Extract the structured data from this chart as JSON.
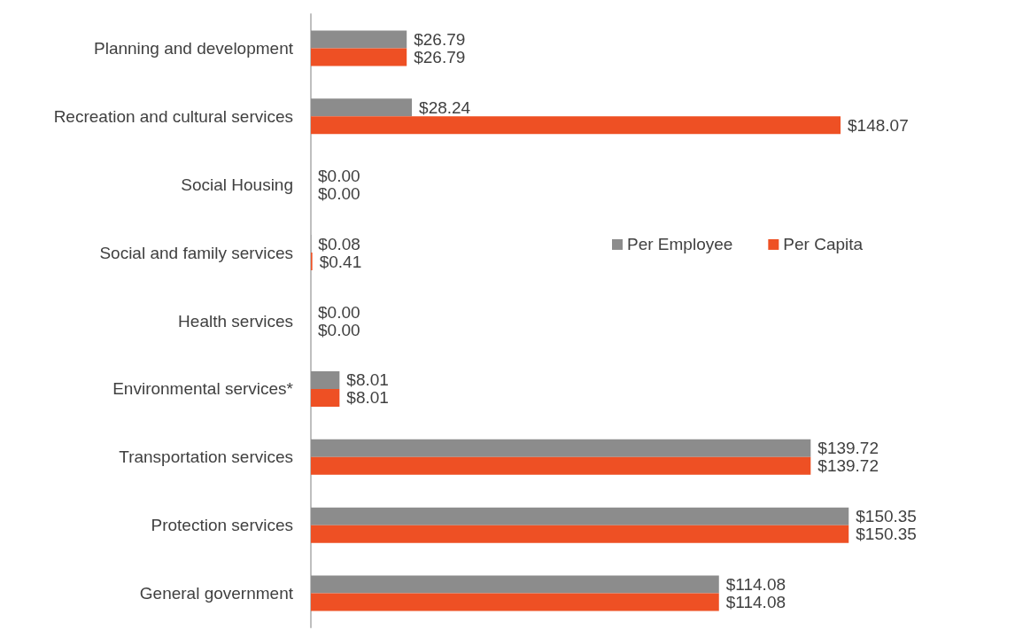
{
  "chart_data": {
    "type": "bar",
    "orientation": "horizontal",
    "categories": [
      "Planning and development",
      "Recreation and cultural services",
      "Social Housing",
      "Social and family services",
      "Health services",
      "Environmental services*",
      "Transportation services",
      "Protection services",
      "General government"
    ],
    "series": [
      {
        "name": "Per Employee",
        "color": "#8c8c8c",
        "values": [
          26.79,
          28.24,
          0,
          0.08,
          0,
          8.01,
          139.72,
          150.35,
          114.08
        ],
        "value_labels": [
          "$26.79",
          "$28.24",
          "$0.00",
          "$0.08",
          "$0.00",
          "$8.01",
          "$139.72",
          "$150.35",
          "$114.08"
        ]
      },
      {
        "name": "Per Capita",
        "color": "#ee5024",
        "values": [
          26.79,
          148.07,
          0,
          0.41,
          0,
          8.01,
          139.72,
          150.35,
          114.08
        ],
        "value_labels": [
          "$26.79",
          "$148.07",
          "$0.00",
          "$0.41",
          "$0.00",
          "$8.01",
          "$139.72",
          "$150.35",
          "$114.08"
        ]
      }
    ],
    "legend": "right"
  }
}
